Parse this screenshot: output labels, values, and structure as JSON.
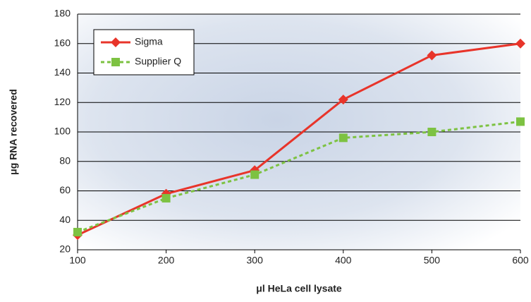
{
  "chart_data": {
    "type": "line",
    "x_label": "μl HeLa cell lysate",
    "y_label": "μg RNA recovered",
    "x": [
      100,
      200,
      300,
      400,
      500,
      600
    ],
    "series": [
      {
        "name": "Sigma",
        "color": "#e8342a",
        "marker": "diamond",
        "dash": false,
        "values": [
          30,
          58,
          74,
          122,
          152,
          160
        ]
      },
      {
        "name": "Supplier Q",
        "color": "#7dc242",
        "marker": "square",
        "dash": true,
        "values": [
          32,
          55,
          71,
          96,
          100,
          107
        ]
      }
    ],
    "xlim": [
      100,
      600
    ],
    "xticks": [
      100,
      200,
      300,
      400,
      500,
      600
    ],
    "ylim": [
      20,
      180
    ],
    "yticks": [
      20,
      40,
      60,
      80,
      100,
      120,
      140,
      160,
      180
    ],
    "grid": true,
    "legend": "upper-left"
  }
}
